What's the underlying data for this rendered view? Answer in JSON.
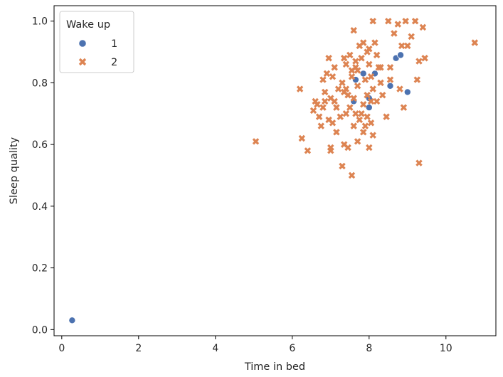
{
  "chart_data": {
    "type": "scatter",
    "xlabel": "Time in bed",
    "ylabel": "Sleep quality",
    "xlim": [
      -0.2,
      11.3
    ],
    "ylim": [
      -0.02,
      1.05
    ],
    "xticks": [
      0,
      2,
      4,
      6,
      8,
      10
    ],
    "yticks": [
      0.0,
      0.2,
      0.4,
      0.6,
      0.8,
      1.0
    ],
    "xtick_labels": [
      "0",
      "2",
      "4",
      "6",
      "8",
      "10"
    ],
    "ytick_labels": [
      "0.0",
      "0.2",
      "0.4",
      "0.6",
      "0.8",
      "1.0"
    ],
    "grid": false,
    "legend": {
      "title": "Wake up",
      "placement": "top-left"
    },
    "series": [
      {
        "name": "1",
        "marker": "circle",
        "color": "#4c72b0",
        "x": [
          0.27,
          7.65,
          7.85,
          7.6,
          8.0,
          8.0,
          8.15,
          8.55,
          8.7,
          8.82,
          9.0
        ],
        "y": [
          0.03,
          0.81,
          0.83,
          0.74,
          0.75,
          0.72,
          0.83,
          0.79,
          0.88,
          0.89,
          0.77
        ]
      },
      {
        "name": "2",
        "marker": "x",
        "color": "#dd8452",
        "x": [
          5.05,
          6.2,
          6.25,
          6.4,
          6.55,
          6.6,
          6.65,
          6.7,
          6.75,
          6.8,
          6.8,
          6.85,
          6.9,
          6.95,
          7.0,
          7.0,
          7.05,
          7.05,
          7.1,
          7.1,
          7.15,
          7.2,
          7.25,
          7.3,
          7.3,
          7.35,
          7.35,
          7.4,
          7.4,
          7.45,
          7.45,
          7.5,
          7.5,
          7.55,
          7.55,
          7.6,
          7.6,
          7.65,
          7.65,
          7.7,
          7.7,
          7.75,
          7.75,
          7.8,
          7.8,
          7.85,
          7.85,
          7.9,
          7.9,
          7.95,
          7.95,
          8.0,
          8.0,
          8.05,
          8.05,
          8.1,
          8.1,
          8.15,
          8.2,
          8.25,
          8.3,
          8.35,
          8.45,
          8.5,
          8.55,
          8.65,
          8.75,
          8.8,
          8.85,
          8.9,
          8.95,
          9.0,
          9.2,
          9.3,
          9.3,
          9.4,
          9.45,
          10.75,
          7.6,
          7.4,
          7.0,
          8.2,
          7.55,
          6.95,
          7.85,
          8.1,
          9.1,
          9.25,
          8.55,
          8.05,
          7.35,
          7.65,
          7.95,
          8.3,
          6.85,
          7.15,
          7.7,
          8.0
        ],
        "y": [
          0.61,
          0.78,
          0.62,
          0.58,
          0.71,
          0.74,
          0.73,
          0.69,
          0.66,
          0.72,
          0.81,
          0.77,
          0.83,
          0.88,
          0.58,
          0.75,
          0.67,
          0.82,
          0.74,
          0.85,
          0.64,
          0.78,
          0.69,
          0.53,
          0.8,
          0.6,
          0.88,
          0.7,
          0.86,
          0.76,
          0.59,
          0.72,
          0.89,
          0.5,
          0.82,
          0.97,
          0.75,
          0.7,
          0.87,
          0.61,
          0.79,
          0.68,
          0.92,
          0.7,
          0.88,
          0.64,
          0.93,
          0.66,
          0.81,
          0.76,
          0.9,
          0.59,
          0.86,
          0.67,
          0.82,
          1.0,
          0.78,
          0.93,
          0.74,
          0.85,
          0.85,
          0.76,
          0.69,
          1.0,
          0.81,
          0.96,
          0.99,
          0.78,
          0.92,
          0.72,
          1.0,
          0.92,
          1.0,
          0.54,
          0.87,
          0.98,
          0.88,
          0.93,
          0.66,
          0.78,
          0.59,
          0.89,
          0.84,
          0.68,
          0.73,
          0.63,
          0.95,
          0.81,
          0.85,
          0.74,
          0.77,
          0.85,
          0.69,
          0.8,
          0.74,
          0.72,
          0.84,
          0.91
        ]
      }
    ]
  }
}
